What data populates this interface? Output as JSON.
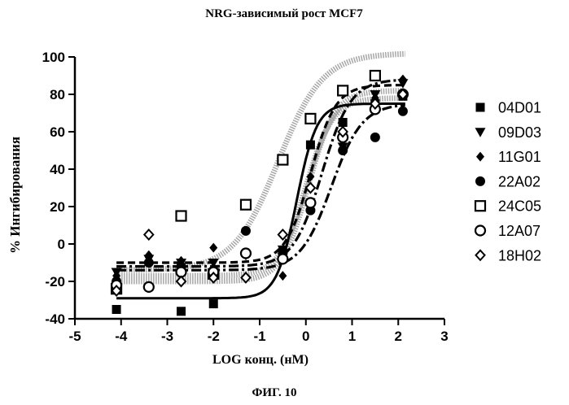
{
  "chart_data": {
    "type": "scatter",
    "title": "NRG-зависимый рост MCF7",
    "xlabel": "LOG конц. (нМ)",
    "ylabel": "% Ингибирования",
    "caption": "ФИГ. 10",
    "xlim": [
      -5,
      3
    ],
    "ylim": [
      -40,
      100
    ],
    "x_ticks": [
      "-5",
      "-4",
      "-3",
      "-2",
      "-1",
      "0",
      "1",
      "2",
      "3"
    ],
    "y_ticks": [
      "100",
      "80",
      "60",
      "40",
      "20",
      "0",
      "-20",
      "-40"
    ],
    "grid": false,
    "legend_position": "right",
    "series": [
      {
        "name": "04D01",
        "marker": "square-filled",
        "line_style": "solid",
        "x": [
          -4.1,
          -2.7,
          -2.0,
          -0.5,
          0.1,
          0.8,
          1.5,
          2.1
        ],
        "y": [
          -35,
          -36,
          -32,
          -5,
          53,
          65,
          75,
          79
        ],
        "curve": {
          "bottom": -29,
          "top": 75,
          "log_ec50": -0.2,
          "hill": 2.0
        }
      },
      {
        "name": "09D03",
        "marker": "triangle-down-filled",
        "line_style": "dash-dot",
        "x": [
          -4.1,
          -3.4,
          -2.7,
          -2.0,
          -1.3,
          -0.5,
          0.1,
          0.8,
          1.5,
          2.1
        ],
        "y": [
          -15,
          -8,
          -10,
          -10,
          -6,
          -3,
          20,
          52,
          80,
          86
        ],
        "curve": {
          "bottom": -12,
          "top": 88,
          "log_ec50": 0.35,
          "hill": 1.4
        }
      },
      {
        "name": "11G01",
        "marker": "diamond-filled",
        "line_style": "dash",
        "x": [
          -4.1,
          -3.4,
          -2.7,
          -2.0,
          -1.3,
          -0.5,
          0.1,
          0.8,
          1.5,
          2.1
        ],
        "y": [
          -17,
          -6,
          -9,
          -2,
          7,
          -17,
          36,
          65,
          78,
          88
        ],
        "curve": {
          "bottom": -10,
          "top": 85,
          "log_ec50": 0.1,
          "hill": 1.6
        }
      },
      {
        "name": "22A02",
        "marker": "circle-filled",
        "line_style": "dash-dot",
        "x": [
          -4.1,
          -3.4,
          -2.7,
          -2.0,
          -1.3,
          -0.5,
          0.1,
          0.8,
          1.5,
          2.1
        ],
        "y": [
          -20,
          -10,
          -12,
          -14,
          7,
          -5,
          18,
          50,
          57,
          71
        ],
        "curve": {
          "bottom": -14,
          "top": 75,
          "log_ec50": 0.55,
          "hill": 1.3
        }
      },
      {
        "name": "24C05",
        "marker": "square-open",
        "line_style": "dotted",
        "x": [
          -4.1,
          -2.7,
          -2.0,
          -1.3,
          -0.5,
          0.1,
          0.8,
          1.5
        ],
        "y": [
          -24,
          15,
          -16,
          21,
          45,
          67,
          82,
          90
        ],
        "curve": {
          "bottom": -14,
          "top": 102,
          "log_ec50": -0.6,
          "hill": 0.9
        }
      },
      {
        "name": "12A07",
        "marker": "circle-open",
        "line_style": "dotted",
        "x": [
          -4.1,
          -3.4,
          -2.7,
          -2.0,
          -1.3,
          -0.5,
          0.1,
          0.8,
          1.5,
          2.1
        ],
        "y": [
          -22,
          -23,
          -15,
          -15,
          -5,
          -8,
          22,
          57,
          72,
          80
        ],
        "curve": {
          "bottom": -17,
          "top": 78,
          "log_ec50": 0.0,
          "hill": 1.5
        }
      },
      {
        "name": "18H02",
        "marker": "diamond-open",
        "line_style": "dotted",
        "x": [
          -4.1,
          -3.4,
          -2.7,
          -2.0,
          -1.3,
          -0.5,
          0.1,
          0.8,
          1.5,
          2.1
        ],
        "y": [
          -25,
          5,
          -20,
          -18,
          -18,
          5,
          30,
          60,
          75,
          80
        ],
        "curve": {
          "bottom": -20,
          "top": 82,
          "log_ec50": 0.05,
          "hill": 1.5
        }
      }
    ]
  }
}
